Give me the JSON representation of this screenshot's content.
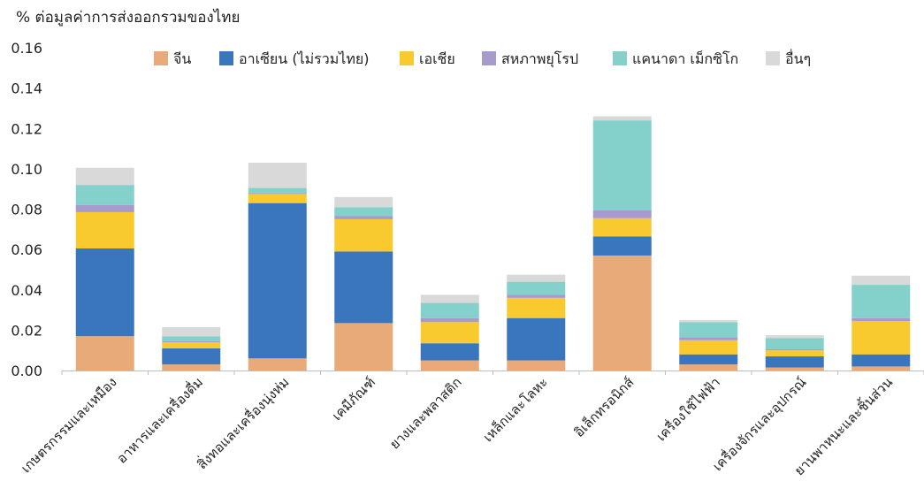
{
  "chart_data": {
    "type": "bar",
    "stacked": true,
    "ylabel": "% ต่อมูลค่าการส่งออกรวมของไทย",
    "ylim": [
      0,
      0.16
    ],
    "yticks": [
      "0.00",
      "0.02",
      "0.04",
      "0.06",
      "0.08",
      "0.10",
      "0.12",
      "0.14",
      "0.16"
    ],
    "grid": false,
    "legend_position": "top",
    "categories": [
      "เกษตรกรรมและเหมือง",
      "อาหารและเครื่องดื่ม",
      "สิ่งทอและเครื่องนุ่งห่ม",
      "เคมีภัณฑ์",
      "ยางและพลาสติก",
      "เหล็กและโลหะ",
      "อิเล็กทรอนิกส์",
      "เครื่องใช้ไฟฟ้า",
      "เครื่องจักรและอุปกรณ์",
      "ยานพาหนะและชิ้นส่วน"
    ],
    "series": [
      {
        "name": "จีน",
        "color": "#E9AA7A",
        "values": [
          0.017,
          0.003,
          0.006,
          0.0235,
          0.005,
          0.005,
          0.057,
          0.003,
          0.0015,
          0.002
        ]
      },
      {
        "name": "อาเซียน (ไม่รวมไทย)",
        "color": "#3A76BE",
        "values": [
          0.0435,
          0.008,
          0.077,
          0.0355,
          0.0085,
          0.021,
          0.0095,
          0.005,
          0.0055,
          0.006
        ]
      },
      {
        "name": "เอเชีย",
        "color": "#F9CA2E",
        "values": [
          0.018,
          0.003,
          0.0045,
          0.016,
          0.0105,
          0.01,
          0.009,
          0.007,
          0.003,
          0.0165
        ]
      },
      {
        "name": "สหภาพยุโรป",
        "color": "#A69BCC",
        "values": [
          0.0035,
          0.0005,
          0.0005,
          0.0015,
          0.002,
          0.0015,
          0.004,
          0.0015,
          0.0005,
          0.0015
        ]
      },
      {
        "name": "แคนาดา เม็กซิโก",
        "color": "#84D1CB",
        "values": [
          0.01,
          0.0025,
          0.0025,
          0.0045,
          0.0075,
          0.0065,
          0.0445,
          0.0075,
          0.0055,
          0.0165
        ]
      },
      {
        "name": "อื่นๆ",
        "color": "#D9D9D9",
        "values": [
          0.0085,
          0.0045,
          0.0125,
          0.005,
          0.004,
          0.0035,
          0.002,
          0.001,
          0.0015,
          0.0045
        ]
      }
    ]
  }
}
